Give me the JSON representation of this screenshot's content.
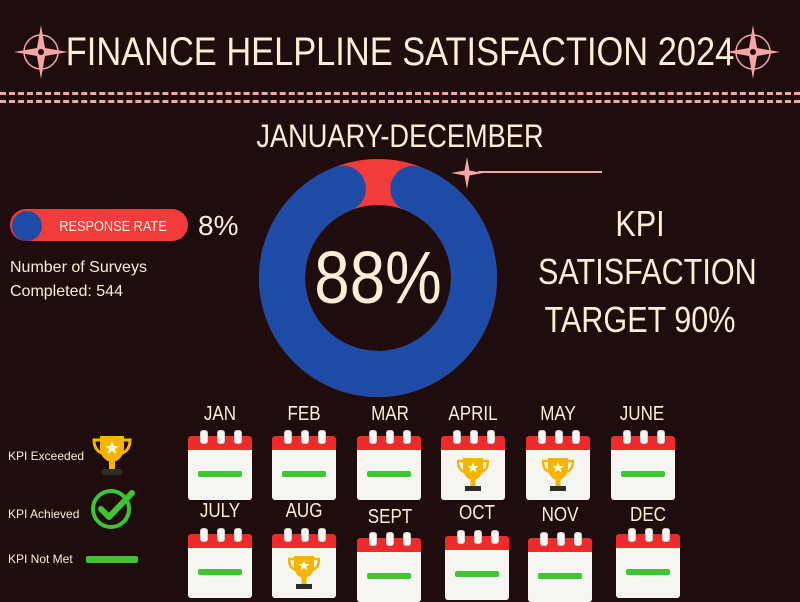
{
  "title": "FINANCE HELPLINE SATISFACTION 2024",
  "period": "JANUARY-DECEMBER",
  "response_rate": {
    "label": "RESPONSE RATE",
    "value": "8%"
  },
  "surveys": {
    "line1": "Number of Surveys",
    "line2": "Completed: 544"
  },
  "satisfaction": {
    "value": "88%",
    "fraction": 0.88
  },
  "kpi_target": {
    "line1": "KPI",
    "line2": "SATISFACTION",
    "line3": "TARGET 90%"
  },
  "legend": {
    "exceeded": "KPI Exceeded",
    "achieved": "KPI Achieved",
    "not_met": "KPI Not Met"
  },
  "months": [
    {
      "label": "JAN",
      "status": "not-met"
    },
    {
      "label": "FEB",
      "status": "not-met"
    },
    {
      "label": "MAR",
      "status": "not-met"
    },
    {
      "label": "APRIL",
      "status": "exceeded"
    },
    {
      "label": "MAY",
      "status": "exceeded"
    },
    {
      "label": "JUNE",
      "status": "not-met"
    },
    {
      "label": "JULY",
      "status": "not-met"
    },
    {
      "label": "AUG",
      "status": "exceeded"
    },
    {
      "label": "SEPT",
      "status": "not-met"
    },
    {
      "label": "OCT",
      "status": "not-met"
    },
    {
      "label": "NOV",
      "status": "not-met"
    },
    {
      "label": "DEC",
      "status": "not-met"
    }
  ],
  "colors": {
    "background": "#1f0c0c",
    "text": "#fbefd5",
    "accent_red": "#f23b3b",
    "accent_blue": "#1e4aa8",
    "kpi_not_met_green": "#3fc534",
    "trophy_gold": "#f5b400",
    "check_green": "#3fc534"
  },
  "icons": {
    "corner_left": "sparkle-icon",
    "corner_right": "sparkle-icon",
    "pointer": "sparkle-pointer-icon",
    "exceeded": "trophy-icon",
    "achieved": "check-circle-icon",
    "calendar": "calendar-icon"
  }
}
